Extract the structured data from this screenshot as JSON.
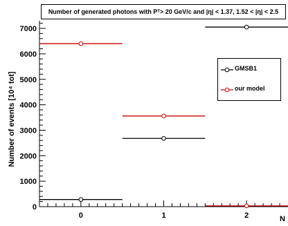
{
  "chart_data": {
    "type": "line",
    "title_parts": {
      "prefix": "Number of generated photons with P",
      "subscript": "T",
      "suffix": " > 20 GeV/c and |η| < 1.37, 1.52 < |η| < 2.5"
    },
    "ylabel": "Number of events [10⁴ tot]",
    "xlabel": "N",
    "x_ticks": [
      "0",
      "1",
      "2"
    ],
    "y_ticks": [
      "0",
      "1000",
      "2000",
      "3000",
      "4000",
      "5000",
      "6000",
      "7000"
    ],
    "ylim": [
      0,
      7300
    ],
    "xlim": [
      -0.5,
      2.5
    ],
    "categories": [
      0,
      1,
      2
    ],
    "series": [
      {
        "name": "GMSB1",
        "color": "#000000",
        "values": [
          280,
          2680,
          7050
        ]
      },
      {
        "name": "our model",
        "color": "#cc0000",
        "values": [
          6400,
          3560,
          30
        ]
      }
    ],
    "legend_position": "right"
  }
}
